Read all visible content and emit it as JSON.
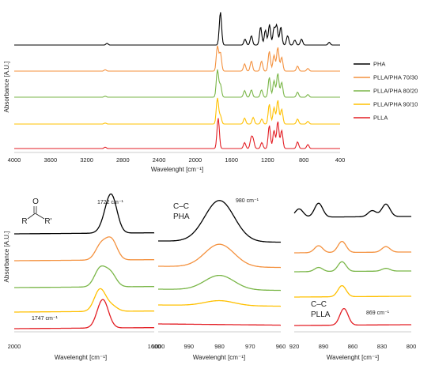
{
  "chart_data": [
    {
      "type": "line",
      "xlabel": "Wavelenght [cm⁻¹]",
      "ylabel": "Absorbance [A.U.]",
      "xlim": [
        4000,
        400
      ],
      "xticks": [
        "4000",
        "3600",
        "3200",
        "2800",
        "2400",
        "2000",
        "1600",
        "1200",
        "800",
        "400"
      ],
      "legend_position": "right",
      "series": [
        {
          "name": "PHA",
          "color": "#000000",
          "peaks": [
            [
              2975,
              0.05
            ],
            [
              1722,
              1.0
            ],
            [
              1450,
              0.18
            ],
            [
              1380,
              0.28
            ],
            [
              1278,
              0.55
            ],
            [
              1225,
              0.45
            ],
            [
              1180,
              0.62
            ],
            [
              1130,
              0.5
            ],
            [
              1100,
              0.58
            ],
            [
              1055,
              0.55
            ],
            [
              980,
              0.28
            ],
            [
              900,
              0.15
            ],
            [
              826,
              0.18
            ],
            [
              520,
              0.08
            ]
          ]
        },
        {
          "name": "PLLA/PHA 70/30",
          "color": "#F4913E",
          "peaks": [
            [
              2995,
              0.04
            ],
            [
              1755,
              0.75
            ],
            [
              1722,
              0.55
            ],
            [
              1455,
              0.22
            ],
            [
              1380,
              0.3
            ],
            [
              1268,
              0.3
            ],
            [
              1182,
              0.6
            ],
            [
              1130,
              0.48
            ],
            [
              1088,
              0.72
            ],
            [
              1045,
              0.42
            ],
            [
              870,
              0.15
            ],
            [
              756,
              0.08
            ]
          ]
        },
        {
          "name": "PLLA/PHA 80/20",
          "color": "#7AB648",
          "peaks": [
            [
              2995,
              0.03
            ],
            [
              1755,
              0.82
            ],
            [
              1722,
              0.38
            ],
            [
              1455,
              0.2
            ],
            [
              1380,
              0.22
            ],
            [
              1268,
              0.22
            ],
            [
              1182,
              0.6
            ],
            [
              1130,
              0.5
            ],
            [
              1088,
              0.72
            ],
            [
              1045,
              0.45
            ],
            [
              870,
              0.15
            ],
            [
              756,
              0.08
            ]
          ]
        },
        {
          "name": "PLLA/PHA 90/10",
          "color": "#FFC000",
          "peaks": [
            [
              2995,
              0.03
            ],
            [
              1755,
              0.78
            ],
            [
              1722,
              0.25
            ],
            [
              1455,
              0.18
            ],
            [
              1360,
              0.2
            ],
            [
              1265,
              0.15
            ],
            [
              1182,
              0.6
            ],
            [
              1130,
              0.5
            ],
            [
              1088,
              0.72
            ],
            [
              1045,
              0.45
            ],
            [
              870,
              0.15
            ],
            [
              756,
              0.08
            ]
          ]
        },
        {
          "name": "PLLA",
          "color": "#E31E24",
          "peaks": [
            [
              2995,
              0.04
            ],
            [
              1747,
              0.92
            ],
            [
              1455,
              0.18
            ],
            [
              1382,
              0.3
            ],
            [
              1360,
              0.25
            ],
            [
              1265,
              0.18
            ],
            [
              1182,
              0.7
            ],
            [
              1130,
              0.55
            ],
            [
              1088,
              0.82
            ],
            [
              1045,
              0.55
            ],
            [
              870,
              0.2
            ],
            [
              756,
              0.12
            ]
          ]
        }
      ]
    },
    {
      "type": "line",
      "xlabel": "Wavelenght [cm⁻¹]",
      "ylabel": "Absorbance [A.U.]",
      "xlim": [
        2000,
        1600
      ],
      "xticks": [
        "2000",
        "1600"
      ],
      "annotations": [
        "1722 cm⁻¹",
        "1747 cm⁻¹"
      ],
      "structure": {
        "top": "O",
        "left": "R",
        "right": "R'"
      },
      "series": [
        {
          "name": "PHA",
          "peaks": [
            [
              1722,
              1.0
            ],
            [
              1740,
              0.18
            ]
          ]
        },
        {
          "name": "PLLA/PHA 70/30",
          "peaks": [
            [
              1722,
              0.55
            ],
            [
              1752,
              0.42
            ]
          ]
        },
        {
          "name": "PLLA/PHA 80/20",
          "peaks": [
            [
              1725,
              0.38
            ],
            [
              1755,
              0.5
            ]
          ]
        },
        {
          "name": "PLLA/PHA 90/10",
          "peaks": [
            [
              1722,
              0.15
            ],
            [
              1755,
              0.62
            ]
          ]
        },
        {
          "name": "PLLA",
          "peaks": [
            [
              1747,
              0.8
            ]
          ]
        }
      ]
    },
    {
      "type": "line",
      "xlabel": "Wavelenght [cm⁻¹]",
      "xlim": [
        1000,
        960
      ],
      "xticks": [
        "1000",
        "990",
        "980",
        "970",
        "960"
      ],
      "annotations": [
        "980 cm⁻¹",
        "C–C",
        "PHA"
      ],
      "series": [
        {
          "name": "PHA",
          "peaks": [
            [
              980,
              1.0
            ]
          ]
        },
        {
          "name": "PLLA/PHA 70/30",
          "peaks": [
            [
              980,
              0.55
            ]
          ]
        },
        {
          "name": "PLLA/PHA 80/20",
          "peaks": [
            [
              980,
              0.35
            ]
          ]
        },
        {
          "name": "PLLA/PHA 90/10",
          "peaks": [
            [
              980,
              0.12
            ]
          ]
        },
        {
          "name": "PLLA",
          "peaks": []
        }
      ]
    },
    {
      "type": "line",
      "xlabel": "Wavelenght [cm⁻¹]",
      "xlim": [
        920,
        800
      ],
      "xticks": [
        "920",
        "890",
        "860",
        "830",
        "800"
      ],
      "annotations": [
        "869 cm⁻¹",
        "C–C",
        "PLLA"
      ],
      "series": [
        {
          "name": "PHA",
          "peaks": [
            [
              915,
              0.3
            ],
            [
              895,
              0.5
            ],
            [
              840,
              0.22
            ],
            [
              826,
              0.45
            ]
          ]
        },
        {
          "name": "PLLA/PHA 70/30",
          "peaks": [
            [
              895,
              0.25
            ],
            [
              871,
              0.4
            ],
            [
              826,
              0.2
            ]
          ]
        },
        {
          "name": "PLLA/PHA 80/20",
          "peaks": [
            [
              895,
              0.15
            ],
            [
              871,
              0.35
            ],
            [
              826,
              0.1
            ]
          ]
        },
        {
          "name": "PLLA/PHA 90/10",
          "peaks": [
            [
              871,
              0.4
            ]
          ]
        },
        {
          "name": "PLLA",
          "peaks": [
            [
              869,
              0.6
            ]
          ]
        }
      ]
    }
  ]
}
